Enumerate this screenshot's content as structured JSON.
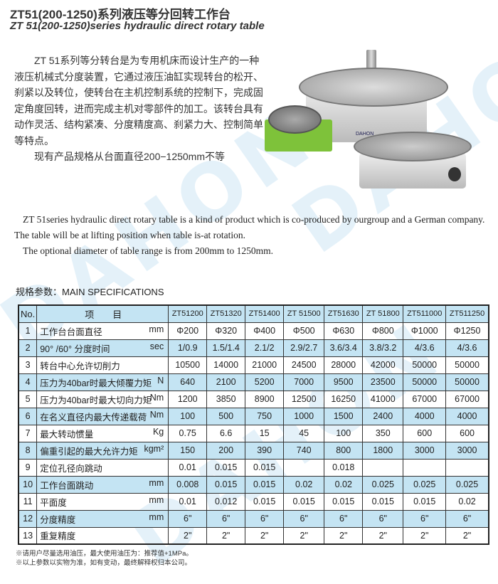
{
  "title_cn": "ZT51(200-1250)系列液压等分回转工作台",
  "title_en": "ZT 51(200-1250)series hydraulic direct rotary table",
  "watermark": "DAHON",
  "brand_label": "DAHON",
  "description_cn": [
    "ZT 51系列等分转台是为专用机床而设计生产的一种液压机械式分度装置，它通过液压油缸实现转台的松开、刹紧以及转位，使转台在主机控制系统的控制下，完成固定角度回转，进而完成主机对零部件的加工。该转台具有动作灵活、结构紧凑、分度精度高、刹紧力大、控制简单等特点。",
    "现有产品规格从台面直径200−1250mm不等"
  ],
  "description_en": [
    "ZT 51series hydraulic direct rotary table is a kind of product which is co-produced by ourgroup and a German company. The table will be at lifting position when table is-at rotation.",
    "The optional diameter of table range is from 200mm to 1250mm."
  ],
  "spec_label": "规格参数：MAIN SPECIFICATIONS",
  "table": {
    "header": {
      "no": "No.",
      "item": "项　　目",
      "models": [
        "ZT51200",
        "ZT51320",
        "ZT51400",
        "ZT 51500",
        "ZT51630",
        "ZT 51800",
        "ZT511000",
        "ZT511250"
      ]
    },
    "rows": [
      {
        "no": "1",
        "item": "工作台台面直径",
        "unit": "mm",
        "values": [
          "Φ200",
          "Φ320",
          "Φ400",
          "Φ500",
          "Φ630",
          "Φ800",
          "Φ1000",
          "Φ1250"
        ]
      },
      {
        "no": "2",
        "item": "90° /60° 分度时间",
        "unit": "sec",
        "values": [
          "1/0.9",
          "1.5/1.4",
          "2.1/2",
          "2.9/2.7",
          "3.6/3.4",
          "3.8/3.2",
          "4/3.6",
          "4/3.6"
        ]
      },
      {
        "no": "3",
        "item": "转台中心允许切削力",
        "unit": "",
        "values": [
          "10500",
          "14000",
          "21000",
          "24500",
          "28000",
          "42000",
          "50000",
          "50000"
        ]
      },
      {
        "no": "4",
        "item": "压力为40bar时最大倾覆力矩",
        "unit": "N",
        "values": [
          "640",
          "2100",
          "5200",
          "7000",
          "9500",
          "23500",
          "50000",
          "50000"
        ]
      },
      {
        "no": "5",
        "item": "压力为40bar时最大切向力矩",
        "unit": "Nm",
        "values": [
          "1200",
          "3850",
          "8900",
          "12500",
          "16250",
          "41000",
          "67000",
          "67000"
        ]
      },
      {
        "no": "6",
        "item": "在名义直径内最大传递载荷",
        "unit": "Nm",
        "values": [
          "100",
          "500",
          "750",
          "1000",
          "1500",
          "2400",
          "4000",
          "4000"
        ]
      },
      {
        "no": "7",
        "item": "最大转动惯量",
        "unit": "Kg",
        "values": [
          "0.75",
          "6.6",
          "15",
          "45",
          "100",
          "350",
          "600",
          "600"
        ]
      },
      {
        "no": "8",
        "item": "偏重引起的最大允许力矩",
        "unit": "kgm²",
        "values": [
          "150",
          "200",
          "390",
          "740",
          "800",
          "1800",
          "3000",
          "3000"
        ]
      },
      {
        "no": "9",
        "item": "定位孔径向跳动",
        "unit": "",
        "values": [
          "0.01",
          "0.015",
          "0.015",
          "",
          "0.018",
          "",
          "",
          ""
        ]
      },
      {
        "no": "10",
        "item": "工作台面跳动",
        "unit": "mm",
        "values": [
          "0.008",
          "0.015",
          "0.015",
          "0.02",
          "0.02",
          "0.025",
          "0.025",
          "0.025"
        ]
      },
      {
        "no": "11",
        "item": "平面度",
        "unit": "mm",
        "values": [
          "0.01",
          "0.012",
          "0.015",
          "0.015",
          "0.015",
          "0.015",
          "0.015",
          "0.02"
        ]
      },
      {
        "no": "12",
        "item": "分度精度",
        "unit": "mm",
        "values": [
          "6\"",
          "6\"",
          "6\"",
          "6\"",
          "6\"",
          "6\"",
          "6\"",
          "6\""
        ]
      },
      {
        "no": "13",
        "item": "重复精度",
        "unit": "",
        "values": [
          "2\"",
          "2\"",
          "2\"",
          "2\"",
          "2\"",
          "2\"",
          "2\"",
          "2\""
        ]
      }
    ]
  },
  "notes": [
    "※请用户尽量选用油压，最大使用油压为：推荐值+1MPa。",
    "※以上参数以实物为准，如有变动，最终解释权归本公司。"
  ]
}
